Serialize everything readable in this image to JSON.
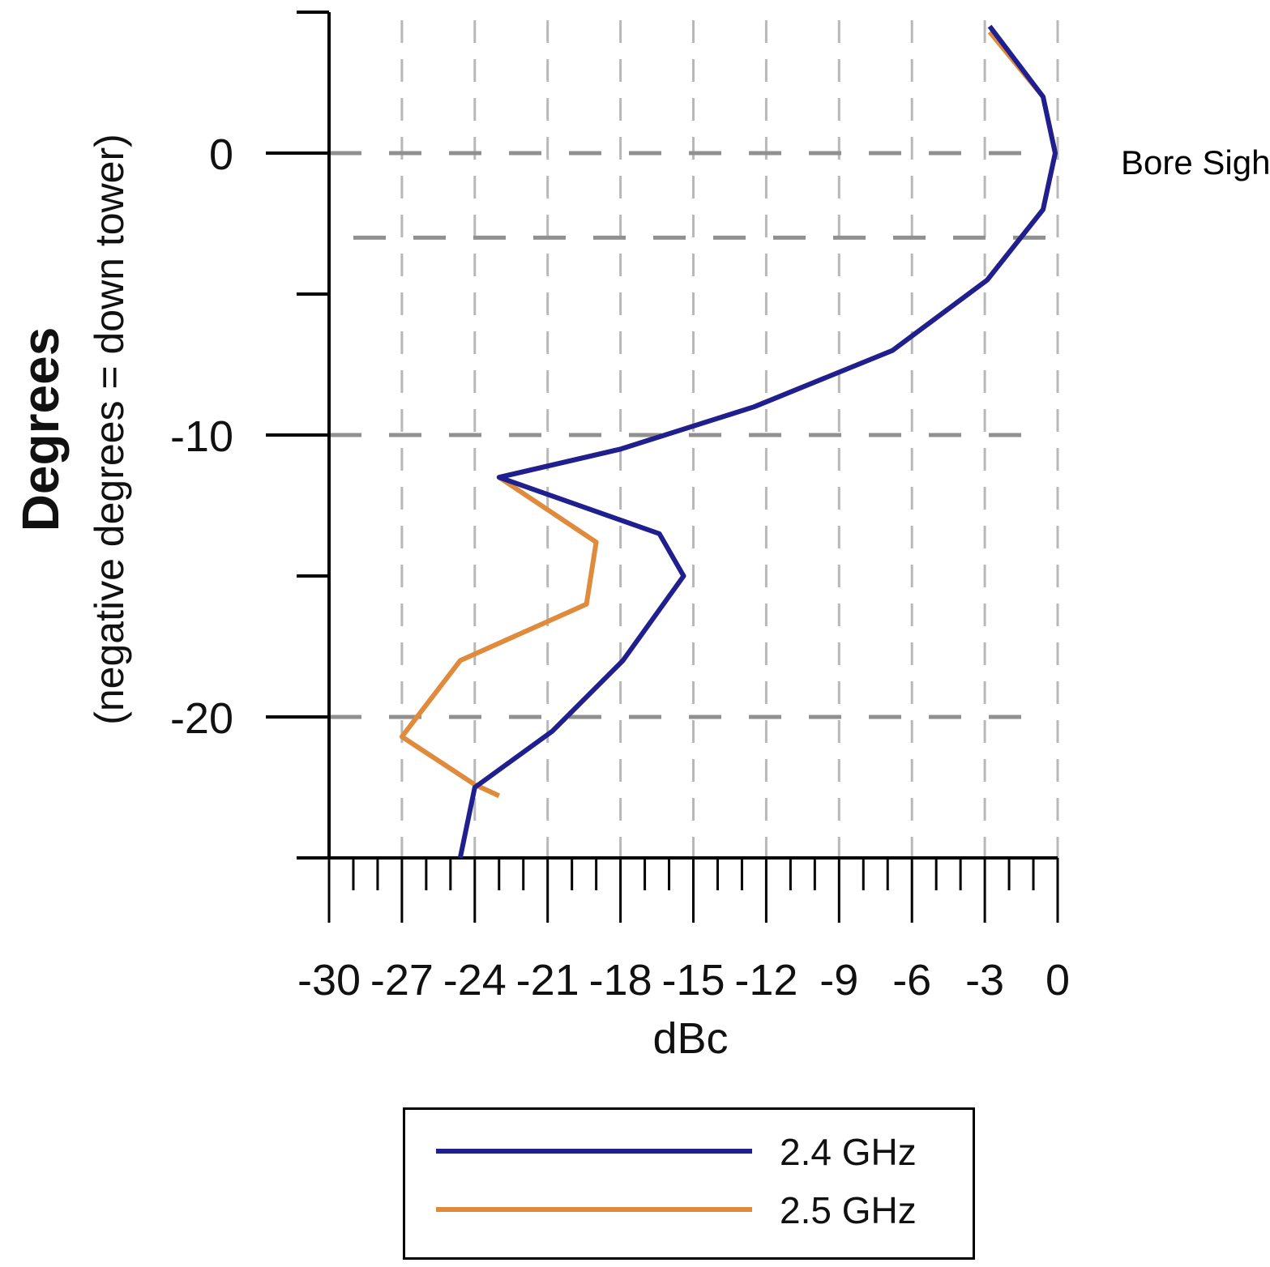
{
  "chart_data": {
    "type": "line",
    "ylabel": "Degrees",
    "ylabel_sub": "(negative degrees = down tower)",
    "xlabel": "dBc",
    "xlim": [
      -30,
      0
    ],
    "ylim": [
      -25,
      5
    ],
    "x_ticks": [
      -30,
      -27,
      -24,
      -21,
      -18,
      -15,
      -12,
      -9,
      -6,
      -3,
      0
    ],
    "x_tick_labels": [
      "-30",
      "-27",
      "-24",
      "-21",
      "-18",
      "-15",
      "-12",
      "-9",
      "-6",
      "-3",
      "0"
    ],
    "y_ticks": [
      -25,
      -20,
      -15,
      -10,
      -5,
      0,
      5
    ],
    "y_tick_labels": [
      "",
      "-20",
      "",
      "-10",
      "",
      "0",
      ""
    ],
    "grid": true,
    "annotations": [
      {
        "text": "Bore Sight",
        "x": 0,
        "y": 0
      }
    ],
    "legend_position": "bottom",
    "series": [
      {
        "name": "2.4 GHz",
        "color": "#1f1f8f",
        "points": [
          [
            -2.8,
            4.5
          ],
          [
            -0.6,
            2.0
          ],
          [
            -0.1,
            0.0
          ],
          [
            -0.6,
            -2.0
          ],
          [
            -2.9,
            -4.5
          ],
          [
            -6.8,
            -7.0
          ],
          [
            -12.5,
            -9.0
          ],
          [
            -18.0,
            -10.5
          ],
          [
            -23.0,
            -11.5
          ],
          [
            -16.4,
            -13.5
          ],
          [
            -15.4,
            -15.0
          ],
          [
            -17.9,
            -18.0
          ],
          [
            -20.8,
            -20.5
          ],
          [
            -24.0,
            -22.5
          ],
          [
            -24.6,
            -25.0
          ]
        ]
      },
      {
        "name": "2.5 GHz",
        "color": "#e08a3c",
        "points": [
          [
            -2.8,
            4.3
          ],
          [
            -0.6,
            2.0
          ],
          [
            -0.1,
            0.0
          ],
          [
            -0.6,
            -2.0
          ],
          [
            -2.9,
            -4.5
          ],
          [
            -6.8,
            -7.0
          ],
          [
            -12.5,
            -9.0
          ],
          [
            -18.0,
            -10.5
          ],
          [
            -23.0,
            -11.5
          ],
          [
            -19.0,
            -13.8
          ],
          [
            -19.4,
            -16.0
          ],
          [
            -24.6,
            -18.0
          ],
          [
            -27.0,
            -20.7
          ],
          [
            -24.0,
            -22.4
          ],
          [
            -23.0,
            -22.8
          ]
        ]
      }
    ]
  }
}
